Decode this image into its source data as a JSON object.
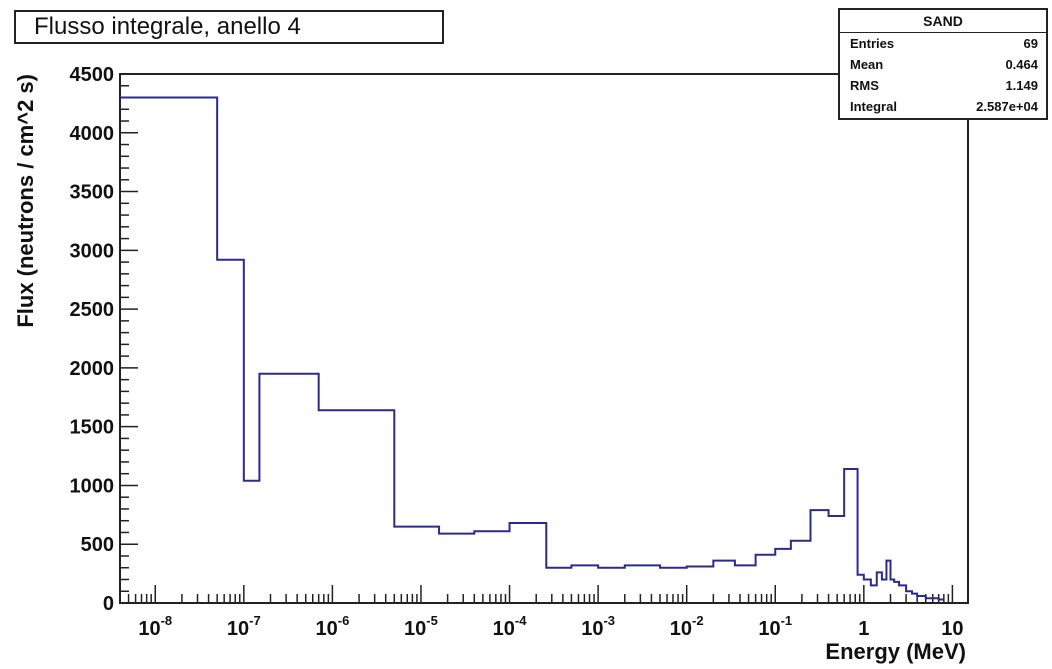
{
  "chart_data": {
    "type": "line",
    "title": "Flusso integrale, anello 4",
    "xlabel": "Energy (MeV)",
    "ylabel": "Flux (neutrons / cm^2 s)",
    "x_scale": "log",
    "xlim": [
      4e-09,
      15
    ],
    "ylim": [
      0,
      4500
    ],
    "y_ticks": [
      0,
      500,
      1000,
      1500,
      2000,
      2500,
      3000,
      3500,
      4000,
      4500
    ],
    "x_ticks": [
      {
        "value": 1e-08,
        "base": "10",
        "exp": "-8"
      },
      {
        "value": 1e-07,
        "base": "10",
        "exp": "-7"
      },
      {
        "value": 1e-06,
        "base": "10",
        "exp": "-6"
      },
      {
        "value": 1e-05,
        "base": "10",
        "exp": "-5"
      },
      {
        "value": 0.0001,
        "base": "10",
        "exp": "-4"
      },
      {
        "value": 0.001,
        "base": "10",
        "exp": "-3"
      },
      {
        "value": 0.01,
        "base": "10",
        "exp": "-2"
      },
      {
        "value": 0.1,
        "base": "10",
        "exp": "-1"
      },
      {
        "value": 1,
        "base": "1",
        "exp": ""
      },
      {
        "value": 10,
        "base": "10",
        "exp": ""
      }
    ],
    "grid": false,
    "line_color": "#2a2a8f",
    "series": [
      {
        "edges": [
          4e-09,
          5e-08,
          1e-07,
          1.5e-07,
          7e-07,
          5e-06,
          1.6e-05,
          4e-05,
          0.0001,
          0.00026,
          0.0005,
          0.001,
          0.002,
          0.005,
          0.01,
          0.02,
          0.035,
          0.06,
          0.1,
          0.15,
          0.25,
          0.4,
          0.6,
          0.85,
          1.0,
          1.2,
          1.4,
          1.6,
          1.8,
          2.0,
          2.2,
          2.5,
          3.0,
          3.5,
          4.0,
          5.0,
          7.0,
          8.0
        ],
        "values": [
          4300,
          2920,
          1040,
          1950,
          1640,
          650,
          590,
          610,
          680,
          300,
          320,
          300,
          320,
          300,
          310,
          360,
          320,
          410,
          460,
          530,
          790,
          740,
          1140,
          240,
          200,
          150,
          260,
          200,
          360,
          200,
          180,
          150,
          100,
          80,
          60,
          40,
          30
        ]
      }
    ]
  },
  "stats": {
    "name": "SAND",
    "rows": [
      {
        "label": "Entries",
        "value": "69"
      },
      {
        "label": "Mean",
        "value": "0.464"
      },
      {
        "label": "RMS",
        "value": "1.149"
      },
      {
        "label": "Integral",
        "value": "2.587e+04"
      }
    ]
  }
}
